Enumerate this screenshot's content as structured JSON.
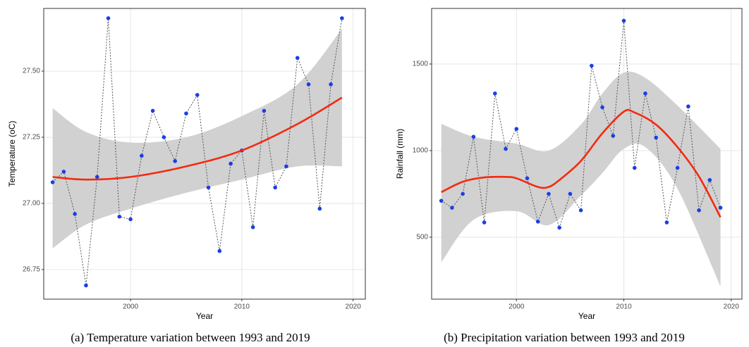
{
  "chart_data": [
    {
      "type": "line",
      "caption": "(a) Temperature variation between 1993 and 2019",
      "x_label": "Year",
      "y_label": "Temperature (oC)",
      "xlim": [
        1992.2,
        2021.1
      ],
      "ylim": [
        26.638,
        27.737
      ],
      "xticks": [
        2000,
        2010,
        2020
      ],
      "yticks": [
        26.75,
        {
          "value": 27.0,
          "label": "27.00"
        },
        27.25,
        {
          "value": 27.5,
          "label": "27.50"
        }
      ],
      "grid": true,
      "x": [
        1993,
        1994,
        1995,
        1996,
        1997,
        1998,
        1999,
        2000,
        2001,
        2002,
        2003,
        2004,
        2005,
        2006,
        2007,
        2008,
        2009,
        2010,
        2011,
        2012,
        2013,
        2014,
        2015,
        2016,
        2017,
        2018,
        2019
      ],
      "series": [
        {
          "style": "points-dotted",
          "color": "#1a3fe6",
          "values": [
            27.08,
            27.12,
            26.96,
            26.69,
            27.1,
            27.7,
            26.95,
            26.94,
            27.18,
            27.35,
            27.25,
            27.16,
            27.34,
            27.41,
            27.06,
            26.82,
            27.15,
            27.2,
            26.91,
            27.35,
            27.06,
            27.14,
            27.55,
            27.45,
            26.98,
            27.45,
            27.7
          ]
        },
        {
          "style": "smooth",
          "color": "#f42a10",
          "x": [
            1993,
            1996,
            2000,
            2005,
            2010,
            2015,
            2019
          ],
          "values": [
            27.1,
            27.09,
            27.1,
            27.14,
            27.2,
            27.3,
            27.4
          ]
        }
      ],
      "band": {
        "color": "#cccccc",
        "x": [
          1993,
          1996,
          2000,
          2005,
          2010,
          2015,
          2019
        ],
        "lower": [
          26.83,
          26.92,
          26.98,
          27.04,
          27.09,
          27.14,
          27.14
        ],
        "upper": [
          27.36,
          27.27,
          27.23,
          27.25,
          27.33,
          27.45,
          27.66
        ]
      }
    },
    {
      "type": "line",
      "caption": "(b) Precipitation variation between 1993 and 2019",
      "x_label": "Year",
      "y_label": "Rainfall (mm)",
      "xlim": [
        1992.1,
        2021.0
      ],
      "ylim": [
        142,
        1821
      ],
      "xticks": [
        2000,
        2010,
        2020
      ],
      "yticks": [
        500,
        1000,
        1500
      ],
      "grid": true,
      "x": [
        1993,
        1994,
        1995,
        1996,
        1997,
        1998,
        1999,
        2000,
        2001,
        2002,
        2003,
        2004,
        2005,
        2006,
        2007,
        2008,
        2009,
        2010,
        2011,
        2012,
        2013,
        2014,
        2015,
        2016,
        2017,
        2018,
        2019
      ],
      "series": [
        {
          "style": "points-dotted",
          "color": "#1a3fe6",
          "values": [
            710,
            670,
            750,
            1080,
            585,
            1330,
            1010,
            1125,
            840,
            590,
            750,
            555,
            750,
            655,
            1490,
            1250,
            1085,
            1750,
            900,
            1330,
            1075,
            585,
            900,
            1255,
            655,
            830,
            670
          ]
        },
        {
          "style": "smooth",
          "color": "#f42a10",
          "x": [
            1993,
            1995,
            1997,
            1999,
            2000,
            2002,
            2003,
            2004,
            2006,
            2008,
            2010,
            2011,
            2013,
            2015,
            2017,
            2019
          ],
          "values": [
            760,
            820,
            845,
            848,
            840,
            790,
            790,
            830,
            940,
            1100,
            1225,
            1220,
            1150,
            1020,
            850,
            615
          ]
        }
      ],
      "band": {
        "color": "#cccccc",
        "x": [
          1993,
          1996,
          2000,
          2003,
          2006,
          2008,
          2010,
          2012,
          2015,
          2019
        ],
        "lower": [
          355,
          600,
          650,
          570,
          740,
          870,
          1010,
          1020,
          780,
          215
        ],
        "upper": [
          1155,
          1080,
          1040,
          1000,
          1150,
          1330,
          1450,
          1420,
          1260,
          1010
        ]
      }
    }
  ]
}
